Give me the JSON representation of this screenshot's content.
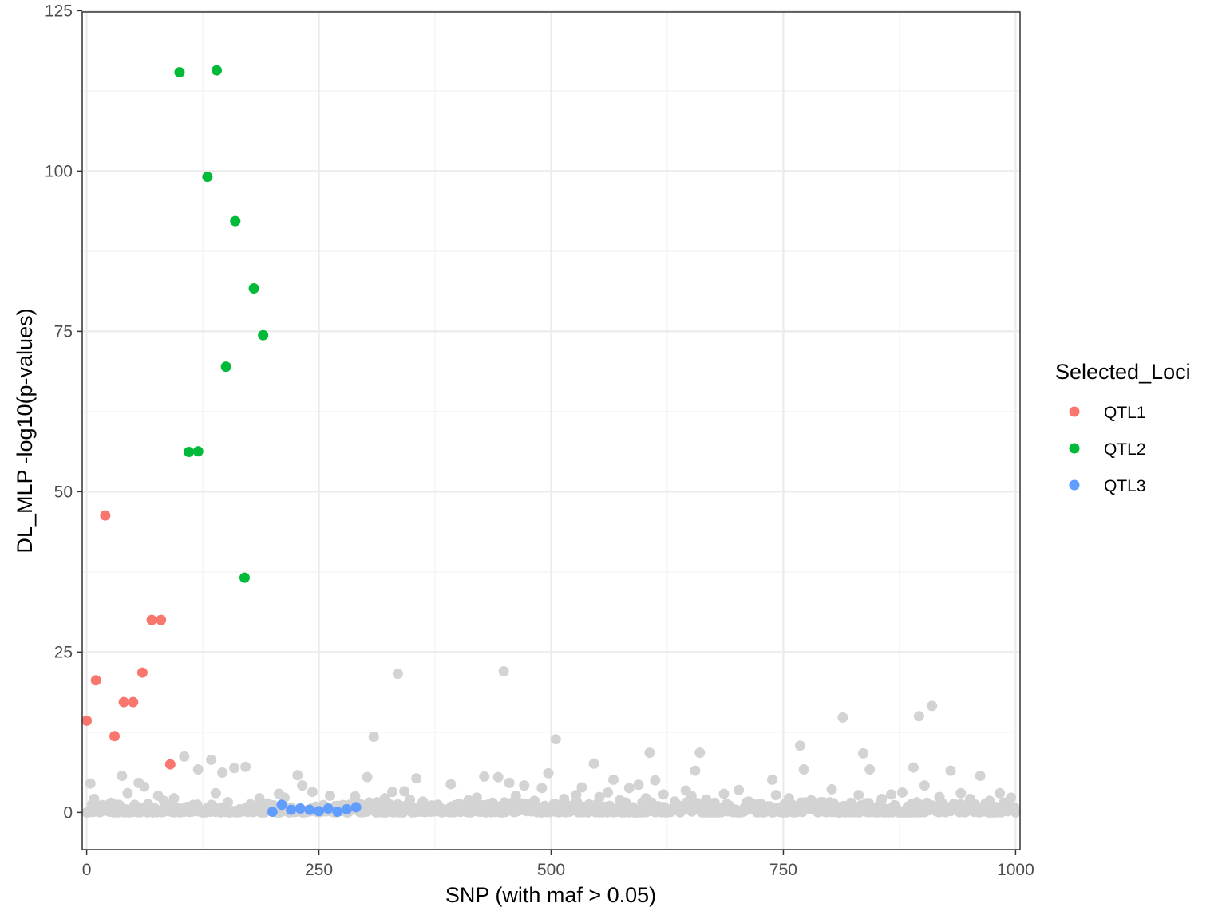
{
  "chart_data": {
    "type": "scatter",
    "xlabel": "SNP (with maf > 0.05)",
    "ylabel": "DL_MLP -log10(p-values)",
    "xlim": [
      -4.8,
      1004.8
    ],
    "ylim": [
      -5.8,
      124.8
    ],
    "x_ticks": [
      0,
      250,
      500,
      750,
      1000
    ],
    "y_ticks": [
      0,
      25,
      50,
      75,
      100,
      125
    ],
    "grid": true,
    "legend": {
      "title": "Selected_Loci",
      "placement": "right",
      "entries": [
        "QTL1",
        "QTL2",
        "QTL3"
      ]
    },
    "colors": {
      "QTL1": "#f8766d",
      "QTL2": "#00ba38",
      "QTL3": "#619cff",
      "background_points": "#d3d3d3"
    },
    "series": [
      {
        "name": "QTL1",
        "x": [
          0,
          10,
          20,
          30,
          40,
          50,
          60,
          70,
          80,
          90
        ],
        "y": [
          14.3,
          20.6,
          46.3,
          11.9,
          17.2,
          17.2,
          21.8,
          30.0,
          30.0,
          7.5
        ]
      },
      {
        "name": "QTL2",
        "x": [
          100,
          110,
          120,
          130,
          140,
          150,
          160,
          170,
          180,
          190
        ],
        "y": [
          115.4,
          56.2,
          56.3,
          99.1,
          115.7,
          69.5,
          92.2,
          36.6,
          81.7,
          74.4
        ]
      },
      {
        "name": "QTL3",
        "x": [
          200,
          210,
          220,
          230,
          240,
          250,
          260,
          270,
          280,
          290
        ],
        "y": [
          0.1,
          1.2,
          0.4,
          0.6,
          0.4,
          0.2,
          0.6,
          0.1,
          0.5,
          0.8
        ]
      },
      {
        "name": "",
        "x": [
          335,
          449,
          309,
          505,
          814,
          896,
          910,
          768,
          105,
          134,
          171,
          159,
          606,
          660,
          836,
          546,
          655,
          38,
          62,
          120,
          146,
          302,
          355,
          428,
          443,
          497,
          567,
          612,
          738,
          772,
          843,
          890,
          930,
          962,
          4,
          8,
          26,
          44,
          56,
          77,
          83,
          94,
          139,
          152,
          186,
          195,
          207,
          213,
          227,
          232,
          243,
          262,
          283,
          289,
          321,
          329,
          342,
          348,
          362,
          378,
          392,
          411,
          420,
          437,
          455,
          462,
          471,
          482,
          490,
          514,
          527,
          533,
          552,
          561,
          574,
          584,
          594,
          602,
          621,
          633,
          645,
          651,
          667,
          676,
          686,
          702,
          713,
          726,
          742,
          756,
          780,
          791,
          802,
          823,
          831,
          856,
          866,
          878,
          902,
          918,
          941,
          951,
          972,
          983,
          995,
          15,
          33,
          66,
          115,
          165,
          201,
          256,
          274,
          295,
          315,
          370,
          401,
          433,
          479,
          520,
          541,
          588,
          617,
          642,
          692,
          708,
          719,
          731,
          749,
          763,
          785,
          797,
          848,
          871,
          884,
          906,
          924,
          946,
          957,
          966,
          988
        ],
        "y": [
          21.6,
          22.0,
          11.8,
          11.4,
          14.8,
          15.0,
          16.6,
          10.4,
          8.7,
          8.2,
          7.1,
          6.9,
          9.3,
          9.3,
          9.2,
          7.6,
          6.5,
          5.7,
          4.0,
          6.7,
          6.2,
          5.5,
          5.3,
          5.6,
          5.5,
          6.1,
          5.1,
          5.0,
          5.1,
          6.7,
          6.7,
          7.0,
          6.5,
          5.7,
          4.5,
          2.1,
          1.5,
          3.0,
          4.6,
          2.6,
          1.8,
          2.2,
          3.0,
          1.6,
          2.2,
          1.4,
          2.9,
          2.3,
          5.8,
          4.2,
          3.2,
          2.6,
          1.2,
          2.5,
          2.2,
          3.2,
          3.3,
          2.0,
          1.7,
          1.2,
          4.4,
          1.9,
          2.3,
          1.5,
          4.6,
          2.6,
          4.2,
          1.8,
          3.8,
          2.1,
          2.7,
          3.9,
          2.4,
          3.1,
          1.9,
          3.8,
          4.3,
          2.2,
          2.8,
          1.7,
          3.4,
          2.6,
          2.0,
          1.5,
          2.9,
          3.5,
          1.7,
          1.2,
          2.7,
          2.2,
          1.9,
          1.3,
          3.6,
          1.5,
          2.7,
          2.1,
          2.8,
          3.1,
          4.2,
          2.4,
          3.0,
          2.1,
          1.8,
          3.0,
          2.3,
          0.9,
          0.6,
          1.3,
          0.8,
          0.5,
          1.1,
          0.7,
          0.4,
          0.9,
          1.0,
          0.6,
          0.8,
          0.5,
          0.9,
          0.7,
          0.3,
          0.8,
          0.6,
          1.0,
          0.5,
          0.7,
          0.4,
          0.9,
          0.6,
          0.3,
          0.8,
          0.5,
          0.7,
          0.4,
          0.9,
          0.6,
          0.5,
          0.8,
          0.3,
          0.7,
          0.6
        ]
      }
    ]
  }
}
